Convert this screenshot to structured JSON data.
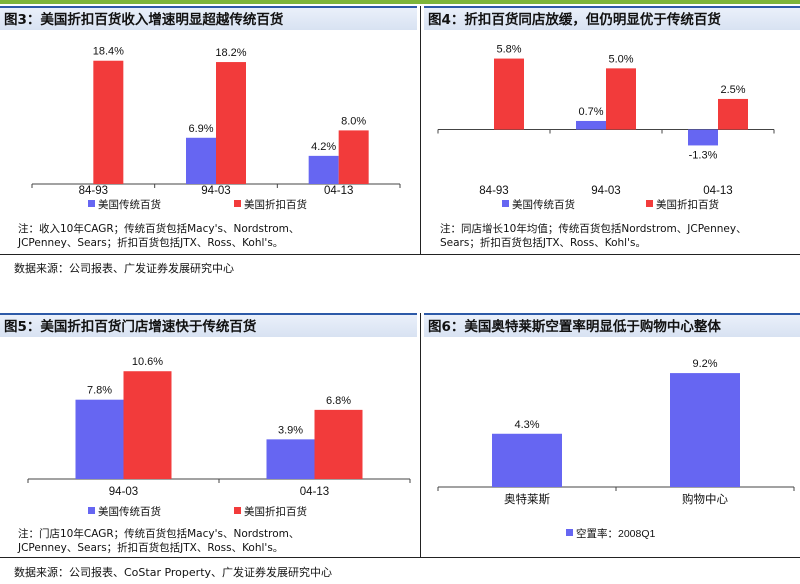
{
  "sources": {
    "top": "数据来源：公司报表、广发证券发展研究中心",
    "bottom": "数据来源：公司报表、CoStar Property、广发证券发展研究中心"
  },
  "colors": {
    "blue": "#6666f2",
    "red": "#f23b3b",
    "header_bg": "#dfe7f5",
    "header_border": "#2d5aa8"
  },
  "chart_data": [
    {
      "id": "fig3",
      "type": "bar",
      "title": "图3：美国折扣百货收入增速明显超越传统百货",
      "categories": [
        "84-93",
        "94-03",
        "04-13"
      ],
      "series": [
        {
          "name": "美国传统百货",
          "color": "#6666f2",
          "values": [
            null,
            6.9,
            4.2
          ],
          "labels": [
            "",
            "6.9%",
            "4.2%"
          ]
        },
        {
          "name": "美国折扣百货",
          "color": "#f23b3b",
          "values": [
            18.4,
            18.2,
            8.0
          ],
          "labels": [
            "18.4%",
            "18.2%",
            "8.0%"
          ]
        }
      ],
      "ylim": [
        0,
        20
      ],
      "legend_position": "bottom",
      "note": [
        "注：收入10年CAGR；传统百货包括Macy's、Nordstrom、",
        "JCPenney、Sears；折扣百货包括JTX、Ross、Kohl's。"
      ]
    },
    {
      "id": "fig4",
      "type": "bar",
      "title": "图4：折扣百货同店放缓，但仍明显优于传统百货",
      "categories": [
        "84-93",
        "94-03",
        "04-13"
      ],
      "series": [
        {
          "name": "美国传统百货",
          "color": "#6666f2",
          "values": [
            null,
            0.7,
            -1.3
          ],
          "labels": [
            "",
            "0.7%",
            "-1.3%"
          ]
        },
        {
          "name": "美国折扣百货",
          "color": "#f23b3b",
          "values": [
            5.8,
            5.0,
            2.5
          ],
          "labels": [
            "5.8%",
            "5.0%",
            "2.5%"
          ]
        }
      ],
      "ylim": [
        -2,
        6.5
      ],
      "legend_position": "bottom",
      "note": [
        "注：同店增长10年均值；传统百货包括Nordstrom、JCPenney、",
        "Sears；折扣百货包括JTX、Ross、Kohl's。"
      ]
    },
    {
      "id": "fig5",
      "type": "bar",
      "title": "图5：美国折扣百货门店增速快于传统百货",
      "categories": [
        "94-03",
        "04-13"
      ],
      "series": [
        {
          "name": "美国传统百货",
          "color": "#6666f2",
          "values": [
            7.8,
            3.9
          ],
          "labels": [
            "7.8%",
            "3.9%"
          ]
        },
        {
          "name": "美国折扣百货",
          "color": "#f23b3b",
          "values": [
            10.6,
            6.8
          ],
          "labels": [
            "10.6%",
            "6.8%"
          ]
        }
      ],
      "ylim": [
        0,
        12
      ],
      "legend_position": "bottom",
      "note": [
        "注：门店10年CAGR；传统百货包括Macy's、Nordstrom、",
        "JCPenney、Sears；折扣百货包括JTX、Ross、Kohl's。"
      ]
    },
    {
      "id": "fig6",
      "type": "bar",
      "title": "图6：美国奥特莱斯空置率明显低于购物中心整体",
      "categories": [
        "奥特莱斯",
        "购物中心"
      ],
      "series": [
        {
          "name": "空置率：2008Q1",
          "color": "#6666f2",
          "values": [
            4.3,
            9.2
          ],
          "labels": [
            "4.3%",
            "9.2%"
          ]
        }
      ],
      "ylim": [
        0,
        10.5
      ],
      "legend_position": "bottom"
    }
  ]
}
